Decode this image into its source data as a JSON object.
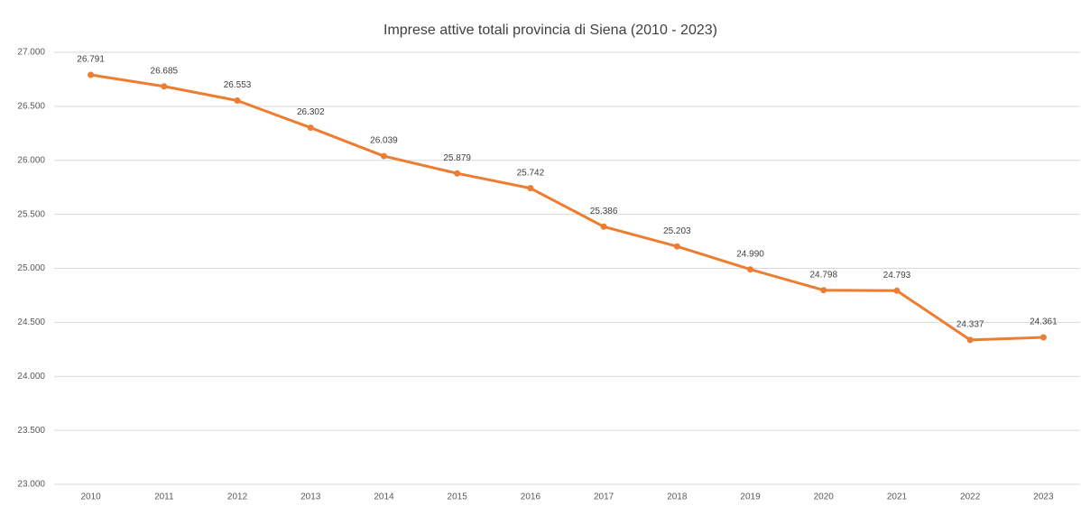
{
  "chart_data": {
    "type": "line",
    "title": "Imprese attive totali provincia di Siena (2010 - 2023)",
    "categories": [
      "2010",
      "2011",
      "2012",
      "2013",
      "2014",
      "2015",
      "2016",
      "2017",
      "2018",
      "2019",
      "2020",
      "2021",
      "2022",
      "2023"
    ],
    "values": [
      26791,
      26685,
      26553,
      26302,
      26039,
      25879,
      25742,
      25386,
      25203,
      24990,
      24798,
      24793,
      24337,
      24361
    ],
    "value_labels": [
      "26.791",
      "26.685",
      "26.553",
      "26.302",
      "26.039",
      "25.879",
      "25.742",
      "25.386",
      "25.203",
      "24.990",
      "24.798",
      "24.793",
      "24.337",
      "24.361"
    ],
    "color": "#ed7d31",
    "ylim": [
      23000,
      27000
    ],
    "yticks": [
      {
        "value": 23000,
        "label": "23.000"
      },
      {
        "value": 23500,
        "label": "23.500"
      },
      {
        "value": 24000,
        "label": "24.000"
      },
      {
        "value": 24500,
        "label": "24.500"
      },
      {
        "value": 25000,
        "label": "25.000"
      },
      {
        "value": 25500,
        "label": "25.500"
      },
      {
        "value": 26000,
        "label": "26.000"
      },
      {
        "value": 26500,
        "label": "26.500"
      },
      {
        "value": 27000,
        "label": "27.000"
      }
    ],
    "grid": true
  }
}
